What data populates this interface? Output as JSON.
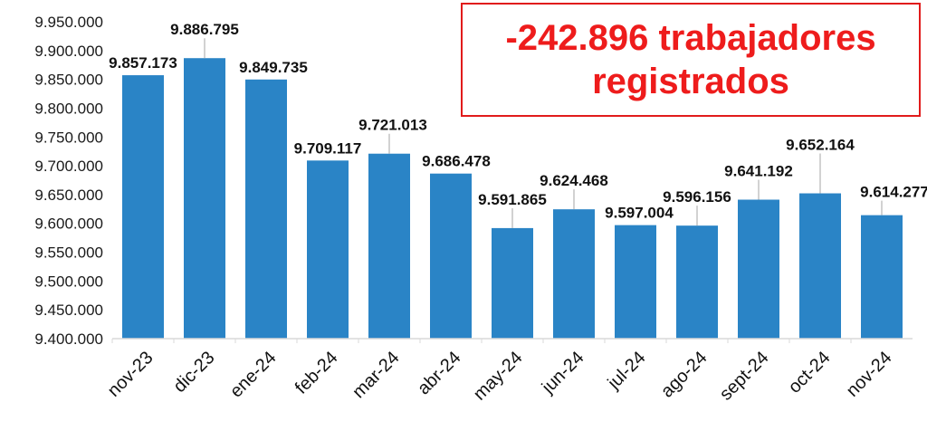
{
  "chart_data": {
    "type": "bar",
    "title": "-242.896 trabajadores registrados",
    "categories": [
      "nov-23",
      "dic-23",
      "ene-24",
      "feb-24",
      "mar-24",
      "abr-24",
      "may-24",
      "jun-24",
      "jul-24",
      "ago-24",
      "sept-24",
      "oct-24",
      "nov-24"
    ],
    "values": [
      9857173,
      9886795,
      9849735,
      9709117,
      9721013,
      9686478,
      9591865,
      9624468,
      9597004,
      9596156,
      9641192,
      9652164,
      9614277
    ],
    "value_labels": [
      "9.857.173",
      "9.886.795",
      "9.849.735",
      "9.709.117",
      "9.721.013",
      "9.686.478",
      "9.591.865",
      "9.624.468",
      "9.597.004",
      "9.596.156",
      "9.641.192",
      "9.652.164",
      "9.614.277"
    ],
    "yticks": [
      "9.400.000",
      "9.450.000",
      "9.500.000",
      "9.550.000",
      "9.600.000",
      "9.650.000",
      "9.700.000",
      "9.750.000",
      "9.800.000",
      "9.850.000",
      "9.900.000",
      "9.950.000"
    ],
    "ylim": [
      9400000,
      9950000
    ],
    "xlabel": "",
    "ylabel": "",
    "grid": false,
    "bar_color": "#2a84c6",
    "title_color": "#ee1c1c"
  }
}
